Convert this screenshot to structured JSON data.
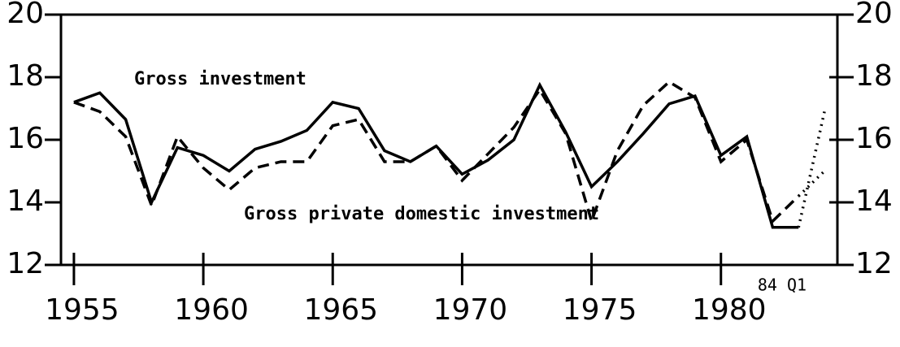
{
  "chart_data": {
    "type": "line",
    "x": [
      1955,
      1956,
      1957,
      1958,
      1959,
      1960,
      1961,
      1962,
      1963,
      1964,
      1965,
      1966,
      1967,
      1968,
      1969,
      1970,
      1971,
      1972,
      1973,
      1974,
      1975,
      1976,
      1977,
      1978,
      1979,
      1980,
      1981,
      1982,
      1983,
      1984
    ],
    "series": [
      {
        "name": "Gross investment",
        "color": "#000000",
        "values": [
          17.2,
          17.5,
          16.65,
          14.0,
          15.75,
          15.5,
          15.0,
          15.7,
          15.95,
          16.3,
          17.2,
          17.0,
          15.65,
          15.3,
          15.8,
          14.9,
          15.35,
          16.0,
          17.75,
          16.25,
          14.5,
          15.3,
          16.2,
          17.15,
          17.4,
          15.5,
          16.1,
          13.2,
          13.2,
          16.9
        ]
      },
      {
        "name": "Gross private domestic investment",
        "color": "#000000",
        "values": [
          17.2,
          16.9,
          16.1,
          13.9,
          16.1,
          15.1,
          14.4,
          15.1,
          15.3,
          15.3,
          16.45,
          16.65,
          15.3,
          15.3,
          15.8,
          14.7,
          15.55,
          16.4,
          17.6,
          16.2,
          13.4,
          15.65,
          17.1,
          17.85,
          17.35,
          15.3,
          16.0,
          13.4,
          14.2,
          15.0
        ]
      }
    ],
    "annotations": [
      "84 Q1"
    ],
    "xlim": [
      1954.5,
      1984.5
    ],
    "xticks": [
      1955,
      1960,
      1965,
      1970,
      1975,
      1980
    ],
    "ylim": [
      12,
      20
    ],
    "yticks": [
      12,
      14,
      16,
      18,
      20
    ],
    "y2lim": [
      12,
      20
    ],
    "y2ticks": [
      12,
      14,
      16,
      18,
      20
    ]
  }
}
